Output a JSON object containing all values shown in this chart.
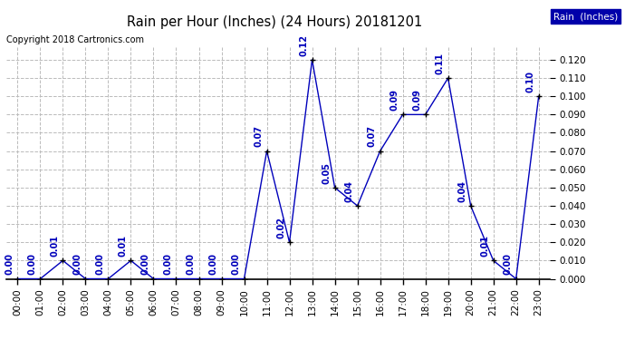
{
  "title": "Rain per Hour (Inches) (24 Hours) 20181201",
  "copyright": "Copyright 2018 Cartronics.com",
  "legend_label": "Rain  (Inches)",
  "hours": [
    "00:00",
    "01:00",
    "02:00",
    "03:00",
    "04:00",
    "05:00",
    "06:00",
    "07:00",
    "08:00",
    "09:00",
    "10:00",
    "11:00",
    "12:00",
    "13:00",
    "14:00",
    "15:00",
    "16:00",
    "17:00",
    "18:00",
    "19:00",
    "20:00",
    "21:00",
    "22:00",
    "23:00"
  ],
  "values": [
    0.0,
    0.0,
    0.01,
    0.0,
    0.0,
    0.01,
    0.0,
    0.0,
    0.0,
    0.0,
    0.0,
    0.07,
    0.02,
    0.12,
    0.05,
    0.04,
    0.07,
    0.09,
    0.09,
    0.11,
    0.04,
    0.01,
    0.0,
    0.1
  ],
  "line_color": "#0000bb",
  "marker_color": "#000000",
  "title_color": "#000000",
  "label_color": "#0000bb",
  "background_color": "#ffffff",
  "grid_color": "#bbbbbb",
  "ylim": [
    0.0,
    0.1267
  ],
  "yticks": [
    0.0,
    0.01,
    0.02,
    0.03,
    0.04,
    0.05,
    0.06,
    0.07,
    0.08,
    0.09,
    0.1,
    0.11,
    0.12
  ],
  "legend_bg": "#0000aa",
  "legend_text_color": "#ffffff",
  "figwidth": 6.9,
  "figheight": 3.75,
  "dpi": 100
}
